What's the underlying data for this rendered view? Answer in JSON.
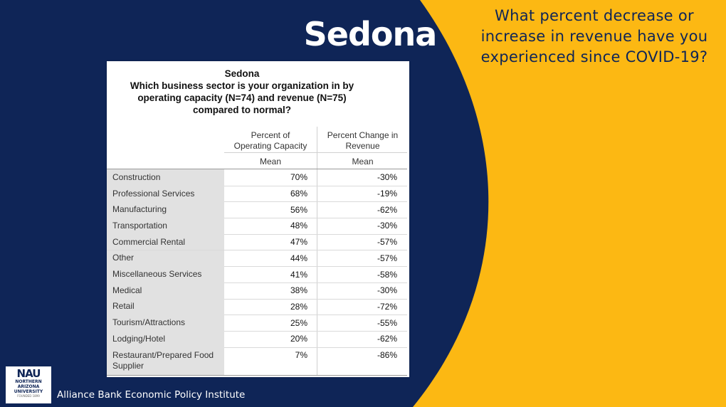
{
  "slide": {
    "title": "Sedona",
    "question": "What percent decrease or increase in revenue have you experienced since COVID-19?",
    "footer": "Alliance Bank Economic Policy Institute",
    "logo": {
      "mark": "NAU",
      "line1": "NORTHERN",
      "line2": "ARIZONA",
      "line3": "UNIVERSITY",
      "founded": "FOUNDED 1899"
    },
    "colors": {
      "navy": "#0f2557",
      "gold": "#fcb813"
    }
  },
  "table": {
    "title_line1": "Sedona",
    "title_line2": "Which business sector is your organization in by",
    "title_line3": "operating capacity (N=74) and revenue (N=75)",
    "title_line4": "compared to normal?",
    "col1_head_line1": "Percent of",
    "col1_head_line2": "Operating Capacity",
    "col1_stat": "Mean",
    "col2_head_line1": "Percent Change in",
    "col2_head_line2": "Revenue",
    "col2_stat": "Mean",
    "rows": [
      {
        "label": "Construction",
        "capacity": "70%",
        "revenue": "-30%"
      },
      {
        "label": "Professional Services",
        "capacity": "68%",
        "revenue": "-19%"
      },
      {
        "label": "Manufacturing",
        "capacity": "56%",
        "revenue": "-62%"
      },
      {
        "label": "Transportation",
        "capacity": "48%",
        "revenue": "-30%"
      },
      {
        "label": "Commercial Rental",
        "capacity": "47%",
        "revenue": "-57%"
      },
      {
        "label": "Other",
        "capacity": "44%",
        "revenue": "-57%"
      },
      {
        "label": "Miscellaneous Services",
        "capacity": "41%",
        "revenue": "-58%"
      },
      {
        "label": "Medical",
        "capacity": "38%",
        "revenue": "-30%"
      },
      {
        "label": "Retail",
        "capacity": "28%",
        "revenue": "-72%"
      },
      {
        "label": "Tourism/Attractions",
        "capacity": "25%",
        "revenue": "-55%"
      },
      {
        "label": "Lodging/Hotel",
        "capacity": "20%",
        "revenue": "-62%"
      },
      {
        "label": "Restaurant/Prepared Food Supplier",
        "capacity": "7%",
        "revenue": "-86%"
      }
    ]
  }
}
